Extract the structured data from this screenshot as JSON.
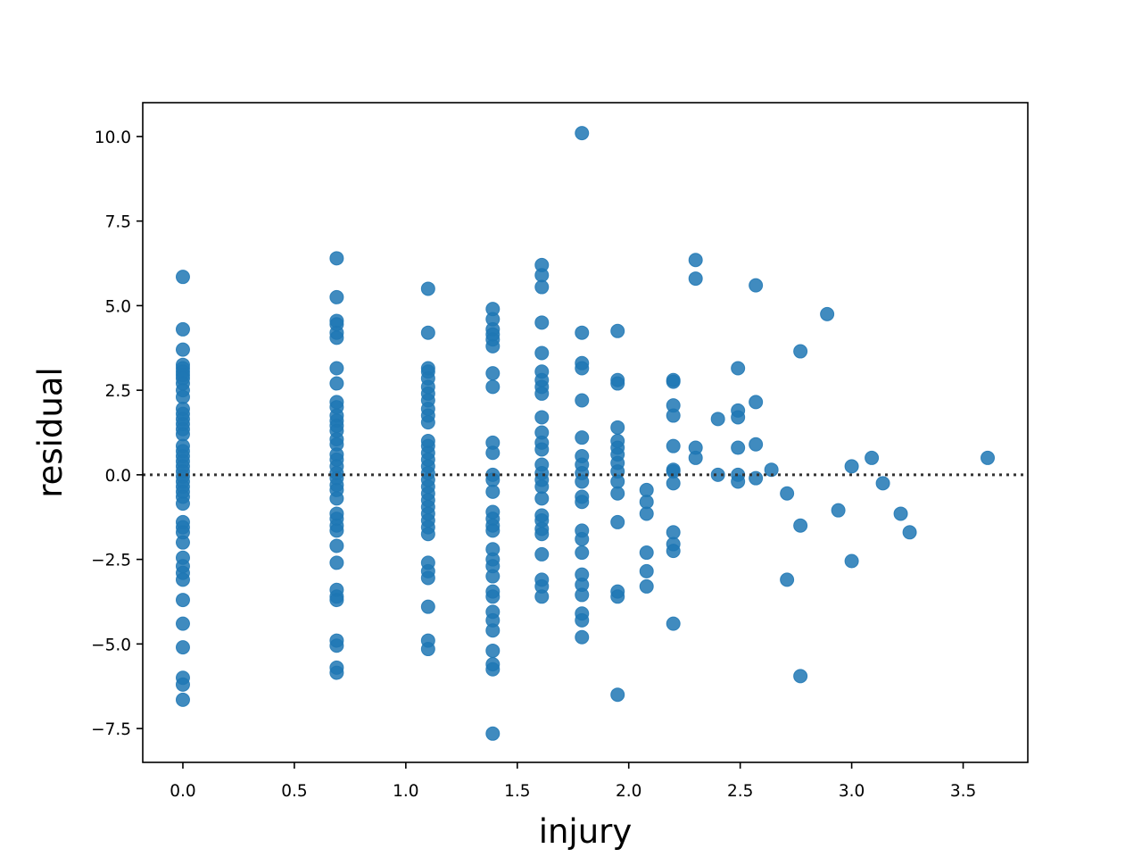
{
  "chart_data": {
    "type": "scatter",
    "title": "",
    "xlabel": "injury",
    "ylabel": "residual",
    "xlim": [
      -0.18,
      3.79
    ],
    "ylim": [
      -8.5,
      11.0
    ],
    "x_ticks": [
      0.0,
      0.5,
      1.0,
      1.5,
      2.0,
      2.5,
      3.0,
      3.5
    ],
    "x_tick_labels": [
      "0.0",
      "0.5",
      "1.0",
      "1.5",
      "2.0",
      "2.5",
      "3.0",
      "3.5"
    ],
    "y_ticks": [
      -7.5,
      -5.0,
      -2.5,
      0.0,
      2.5,
      5.0,
      7.5,
      10.0
    ],
    "y_tick_labels": [
      "−7.5",
      "−5.0",
      "−2.5",
      "0.0",
      "2.5",
      "5.0",
      "7.5",
      "10.0"
    ],
    "grid": false,
    "reference_line": {
      "y": 0.0,
      "style": "dotted",
      "color": "#333333"
    },
    "colors": {
      "points": "#1f77b4",
      "axes": "#000000"
    },
    "series": [
      {
        "points": [
          [
            0.0,
            5.85
          ],
          [
            0.0,
            4.3
          ],
          [
            0.0,
            3.7
          ],
          [
            0.0,
            3.25
          ],
          [
            0.0,
            3.15
          ],
          [
            0.0,
            3.05
          ],
          [
            0.0,
            2.95
          ],
          [
            0.0,
            2.85
          ],
          [
            0.0,
            2.7
          ],
          [
            0.0,
            2.5
          ],
          [
            0.0,
            2.3
          ],
          [
            0.0,
            1.95
          ],
          [
            0.0,
            1.8
          ],
          [
            0.0,
            1.65
          ],
          [
            0.0,
            1.5
          ],
          [
            0.0,
            1.35
          ],
          [
            0.0,
            1.2
          ],
          [
            0.0,
            0.85
          ],
          [
            0.0,
            0.7
          ],
          [
            0.0,
            0.55
          ],
          [
            0.0,
            0.4
          ],
          [
            0.0,
            0.25
          ],
          [
            0.0,
            0.1
          ],
          [
            0.0,
            -0.05
          ],
          [
            0.0,
            -0.2
          ],
          [
            0.0,
            -0.35
          ],
          [
            0.0,
            -0.5
          ],
          [
            0.0,
            -0.65
          ],
          [
            0.0,
            -0.85
          ],
          [
            0.0,
            -1.4
          ],
          [
            0.0,
            -1.55
          ],
          [
            0.0,
            -1.7
          ],
          [
            0.0,
            -2.0
          ],
          [
            0.0,
            -2.45
          ],
          [
            0.0,
            -2.7
          ],
          [
            0.0,
            -2.9
          ],
          [
            0.0,
            -3.1
          ],
          [
            0.0,
            -3.7
          ],
          [
            0.0,
            -4.4
          ],
          [
            0.0,
            -5.1
          ],
          [
            0.0,
            -6.0
          ],
          [
            0.0,
            -6.2
          ],
          [
            0.0,
            -6.65
          ],
          [
            0.69,
            6.4
          ],
          [
            0.69,
            5.25
          ],
          [
            0.69,
            4.55
          ],
          [
            0.69,
            4.45
          ],
          [
            0.69,
            4.2
          ],
          [
            0.69,
            4.05
          ],
          [
            0.69,
            3.15
          ],
          [
            0.69,
            2.7
          ],
          [
            0.69,
            2.15
          ],
          [
            0.69,
            2.0
          ],
          [
            0.69,
            1.75
          ],
          [
            0.69,
            1.6
          ],
          [
            0.69,
            1.45
          ],
          [
            0.69,
            1.3
          ],
          [
            0.69,
            1.05
          ],
          [
            0.69,
            0.9
          ],
          [
            0.69,
            0.6
          ],
          [
            0.69,
            0.45
          ],
          [
            0.69,
            0.25
          ],
          [
            0.69,
            0.05
          ],
          [
            0.69,
            -0.1
          ],
          [
            0.69,
            -0.3
          ],
          [
            0.69,
            -0.45
          ],
          [
            0.69,
            -0.7
          ],
          [
            0.69,
            -1.15
          ],
          [
            0.69,
            -1.3
          ],
          [
            0.69,
            -1.5
          ],
          [
            0.69,
            -1.65
          ],
          [
            0.69,
            -2.1
          ],
          [
            0.69,
            -2.6
          ],
          [
            0.69,
            -3.4
          ],
          [
            0.69,
            -3.6
          ],
          [
            0.69,
            -3.7
          ],
          [
            0.69,
            -4.9
          ],
          [
            0.69,
            -5.05
          ],
          [
            0.69,
            -5.7
          ],
          [
            0.69,
            -5.85
          ],
          [
            1.1,
            5.5
          ],
          [
            1.1,
            4.2
          ],
          [
            1.1,
            3.15
          ],
          [
            1.1,
            3.05
          ],
          [
            1.1,
            2.85
          ],
          [
            1.1,
            2.6
          ],
          [
            1.1,
            2.4
          ],
          [
            1.1,
            2.2
          ],
          [
            1.1,
            1.95
          ],
          [
            1.1,
            1.75
          ],
          [
            1.1,
            1.55
          ],
          [
            1.1,
            1.0
          ],
          [
            1.1,
            0.85
          ],
          [
            1.1,
            0.65
          ],
          [
            1.1,
            0.45
          ],
          [
            1.1,
            0.25
          ],
          [
            1.1,
            0.05
          ],
          [
            1.1,
            -0.15
          ],
          [
            1.1,
            -0.35
          ],
          [
            1.1,
            -0.55
          ],
          [
            1.1,
            -0.75
          ],
          [
            1.1,
            -0.95
          ],
          [
            1.1,
            -1.15
          ],
          [
            1.1,
            -1.35
          ],
          [
            1.1,
            -1.55
          ],
          [
            1.1,
            -1.75
          ],
          [
            1.1,
            -2.6
          ],
          [
            1.1,
            -2.85
          ],
          [
            1.1,
            -3.05
          ],
          [
            1.1,
            -3.9
          ],
          [
            1.1,
            -4.9
          ],
          [
            1.1,
            -5.15
          ],
          [
            1.39,
            4.9
          ],
          [
            1.39,
            4.6
          ],
          [
            1.39,
            4.3
          ],
          [
            1.39,
            4.15
          ],
          [
            1.39,
            4.0
          ],
          [
            1.39,
            3.8
          ],
          [
            1.39,
            3.0
          ],
          [
            1.39,
            2.6
          ],
          [
            1.39,
            0.95
          ],
          [
            1.39,
            0.65
          ],
          [
            1.39,
            0.0
          ],
          [
            1.39,
            -0.15
          ],
          [
            1.39,
            -0.5
          ],
          [
            1.39,
            -1.1
          ],
          [
            1.39,
            -1.3
          ],
          [
            1.39,
            -1.5
          ],
          [
            1.39,
            -1.65
          ],
          [
            1.39,
            -2.2
          ],
          [
            1.39,
            -2.5
          ],
          [
            1.39,
            -2.7
          ],
          [
            1.39,
            -3.0
          ],
          [
            1.39,
            -3.45
          ],
          [
            1.39,
            -3.6
          ],
          [
            1.39,
            -4.05
          ],
          [
            1.39,
            -4.3
          ],
          [
            1.39,
            -4.6
          ],
          [
            1.39,
            -5.2
          ],
          [
            1.39,
            -5.6
          ],
          [
            1.39,
            -5.75
          ],
          [
            1.39,
            -7.65
          ],
          [
            1.61,
            6.2
          ],
          [
            1.61,
            5.9
          ],
          [
            1.61,
            5.55
          ],
          [
            1.61,
            4.5
          ],
          [
            1.61,
            3.6
          ],
          [
            1.61,
            3.05
          ],
          [
            1.61,
            2.8
          ],
          [
            1.61,
            2.6
          ],
          [
            1.61,
            2.4
          ],
          [
            1.61,
            1.7
          ],
          [
            1.61,
            1.25
          ],
          [
            1.61,
            0.95
          ],
          [
            1.61,
            0.75
          ],
          [
            1.61,
            0.3
          ],
          [
            1.61,
            0.05
          ],
          [
            1.61,
            -0.15
          ],
          [
            1.61,
            -0.35
          ],
          [
            1.61,
            -0.7
          ],
          [
            1.61,
            -1.2
          ],
          [
            1.61,
            -1.35
          ],
          [
            1.61,
            -1.6
          ],
          [
            1.61,
            -1.75
          ],
          [
            1.61,
            -2.35
          ],
          [
            1.61,
            -3.1
          ],
          [
            1.61,
            -3.3
          ],
          [
            1.61,
            -3.6
          ],
          [
            1.79,
            10.1
          ],
          [
            1.79,
            4.2
          ],
          [
            1.79,
            3.3
          ],
          [
            1.79,
            3.15
          ],
          [
            1.79,
            2.2
          ],
          [
            1.79,
            1.1
          ],
          [
            1.79,
            0.55
          ],
          [
            1.79,
            0.3
          ],
          [
            1.79,
            0.05
          ],
          [
            1.79,
            -0.2
          ],
          [
            1.79,
            -0.65
          ],
          [
            1.79,
            -0.8
          ],
          [
            1.79,
            -1.65
          ],
          [
            1.79,
            -1.9
          ],
          [
            1.79,
            -2.3
          ],
          [
            1.79,
            -2.95
          ],
          [
            1.79,
            -3.25
          ],
          [
            1.79,
            -3.55
          ],
          [
            1.79,
            -4.1
          ],
          [
            1.79,
            -4.3
          ],
          [
            1.79,
            -4.8
          ],
          [
            1.95,
            4.25
          ],
          [
            1.95,
            2.8
          ],
          [
            1.95,
            2.7
          ],
          [
            1.95,
            1.4
          ],
          [
            1.95,
            1.0
          ],
          [
            1.95,
            0.8
          ],
          [
            1.95,
            0.6
          ],
          [
            1.95,
            0.35
          ],
          [
            1.95,
            0.1
          ],
          [
            1.95,
            -0.2
          ],
          [
            1.95,
            -0.55
          ],
          [
            1.95,
            -1.4
          ],
          [
            1.95,
            -3.45
          ],
          [
            1.95,
            -3.6
          ],
          [
            1.95,
            -6.5
          ],
          [
            2.08,
            -0.45
          ],
          [
            2.08,
            -0.8
          ],
          [
            2.08,
            -1.15
          ],
          [
            2.08,
            -2.3
          ],
          [
            2.08,
            -2.85
          ],
          [
            2.08,
            -3.3
          ],
          [
            2.2,
            2.8
          ],
          [
            2.2,
            2.75
          ],
          [
            2.2,
            2.05
          ],
          [
            2.2,
            1.75
          ],
          [
            2.2,
            0.85
          ],
          [
            2.2,
            0.15
          ],
          [
            2.2,
            0.1
          ],
          [
            2.2,
            -0.25
          ],
          [
            2.2,
            -1.7
          ],
          [
            2.2,
            -2.05
          ],
          [
            2.2,
            -2.25
          ],
          [
            2.2,
            -4.4
          ],
          [
            2.3,
            6.35
          ],
          [
            2.3,
            5.8
          ],
          [
            2.3,
            0.8
          ],
          [
            2.3,
            0.5
          ],
          [
            2.4,
            1.65
          ],
          [
            2.4,
            0.0
          ],
          [
            2.49,
            3.15
          ],
          [
            2.49,
            1.9
          ],
          [
            2.49,
            1.7
          ],
          [
            2.49,
            0.8
          ],
          [
            2.49,
            0.0
          ],
          [
            2.49,
            -0.2
          ],
          [
            2.57,
            5.6
          ],
          [
            2.57,
            2.15
          ],
          [
            2.57,
            0.9
          ],
          [
            2.57,
            -0.1
          ],
          [
            2.64,
            0.15
          ],
          [
            2.71,
            -0.55
          ],
          [
            2.71,
            -3.1
          ],
          [
            2.77,
            3.65
          ],
          [
            2.77,
            -1.5
          ],
          [
            2.77,
            -5.95
          ],
          [
            2.89,
            4.75
          ],
          [
            2.94,
            -1.05
          ],
          [
            3.0,
            0.25
          ],
          [
            3.0,
            -2.55
          ],
          [
            3.09,
            0.5
          ],
          [
            3.14,
            -0.25
          ],
          [
            3.22,
            -1.15
          ],
          [
            3.26,
            -1.7
          ],
          [
            3.61,
            0.5
          ]
        ]
      }
    ]
  }
}
